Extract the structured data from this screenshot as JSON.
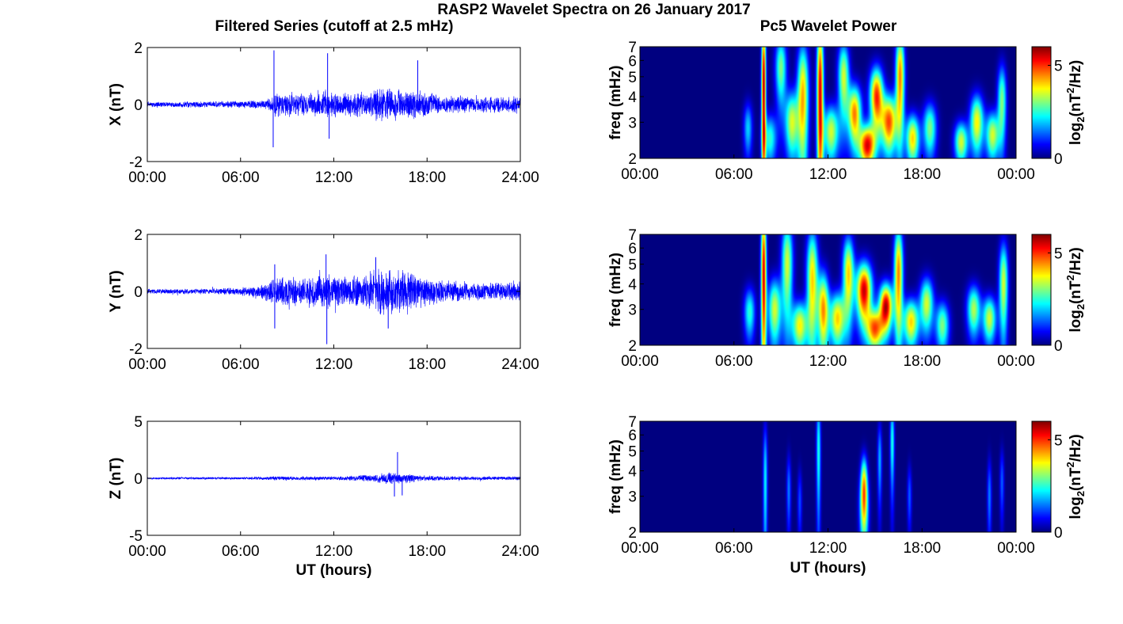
{
  "figure": {
    "title": "RASP2 Wavelet Spectra on 26 January 2017",
    "left_title": "Filtered Series (cutoff at 2.5 mHz)",
    "right_title": "Pc5 Wavelet Power",
    "series_color": "#0000ff"
  },
  "chart_data": [
    {
      "type": "line",
      "component": "X",
      "ylabel": "X (nT)",
      "xlabel": "",
      "xlim_hours": [
        0,
        24
      ],
      "ylim": [
        -2,
        2
      ],
      "yticks": [
        "-2",
        "0",
        "2"
      ],
      "xticks": [
        "00:00",
        "06:00",
        "12:00",
        "18:00",
        "24:00"
      ],
      "envelope": {
        "t": [
          0,
          3,
          6,
          7.8,
          8.2,
          10,
          11.5,
          12,
          14,
          15,
          17,
          17.5,
          19,
          21,
          24
        ],
        "amp": [
          0.08,
          0.09,
          0.12,
          0.15,
          0.45,
          0.35,
          0.5,
          0.4,
          0.4,
          0.55,
          0.5,
          0.45,
          0.3,
          0.25,
          0.28
        ]
      },
      "spikes": [
        {
          "t": 8.15,
          "y": 1.9
        },
        {
          "t": 8.1,
          "y": -1.5
        },
        {
          "t": 11.6,
          "y": 1.8
        },
        {
          "t": 11.7,
          "y": -1.2
        },
        {
          "t": 17.4,
          "y": 1.55
        }
      ]
    },
    {
      "type": "line",
      "component": "Y",
      "ylabel": "Y (nT)",
      "xlabel": "",
      "xlim_hours": [
        0,
        24
      ],
      "ylim": [
        -2,
        2
      ],
      "yticks": [
        "-2",
        "0",
        "2"
      ],
      "xticks": [
        "00:00",
        "06:00",
        "12:00",
        "18:00",
        "24:00"
      ],
      "envelope": {
        "t": [
          0,
          3,
          6,
          7.5,
          8.2,
          10,
          11.5,
          12,
          14,
          15,
          16,
          17,
          19,
          21,
          24
        ],
        "amp": [
          0.08,
          0.08,
          0.12,
          0.25,
          0.5,
          0.45,
          0.6,
          0.45,
          0.5,
          0.8,
          0.7,
          0.6,
          0.35,
          0.3,
          0.3
        ]
      },
      "spikes": [
        {
          "t": 8.2,
          "y": 0.95
        },
        {
          "t": 8.2,
          "y": -1.3
        },
        {
          "t": 11.5,
          "y": 1.3
        },
        {
          "t": 11.55,
          "y": -1.85
        },
        {
          "t": 14.7,
          "y": 1.2
        },
        {
          "t": 15.5,
          "y": -1.3
        }
      ]
    },
    {
      "type": "line",
      "component": "Z",
      "ylabel": "Z (nT)",
      "xlabel": "UT (hours)",
      "xlim_hours": [
        0,
        24
      ],
      "ylim": [
        -5,
        5
      ],
      "yticks": [
        "-5",
        "0",
        "5"
      ],
      "xticks": [
        "00:00",
        "06:00",
        "12:00",
        "18:00",
        "24:00"
      ],
      "envelope": {
        "t": [
          0,
          6,
          8,
          12,
          14.5,
          15.5,
          16.5,
          18,
          20,
          24
        ],
        "amp": [
          0.08,
          0.1,
          0.15,
          0.15,
          0.3,
          0.5,
          0.4,
          0.2,
          0.15,
          0.15
        ]
      },
      "spikes": [
        {
          "t": 16.1,
          "y": 2.3
        },
        {
          "t": 15.9,
          "y": -1.6
        },
        {
          "t": 16.4,
          "y": -1.5
        }
      ]
    },
    {
      "type": "heatmap",
      "component": "X",
      "ylabel": "freq (mHz)",
      "xlabel": "",
      "xlim_hours": [
        0,
        24
      ],
      "yticks": [
        "2",
        "3",
        "4",
        "5",
        "6",
        "7"
      ],
      "xticks": [
        "00:00",
        "06:00",
        "12:00",
        "18:00",
        "00:00"
      ],
      "colorbar_label": "log2(nT2/Hz)",
      "colorbar_ticks": [
        "0",
        "5"
      ],
      "colorbar_max": 6,
      "colormap": "jet",
      "blobs": [
        {
          "t": 7.9,
          "f": 4.5,
          "amp": 5.8,
          "tw": 0.1,
          "fw": 3
        },
        {
          "t": 8.3,
          "f": 2.5,
          "amp": 2.5,
          "tw": 0.3,
          "fw": 0.5
        },
        {
          "t": 9.0,
          "f": 5.5,
          "amp": 3.0,
          "tw": 0.25,
          "fw": 1.5
        },
        {
          "t": 9.7,
          "f": 3.0,
          "amp": 3.5,
          "tw": 0.3,
          "fw": 0.8
        },
        {
          "t": 10.4,
          "f": 4.0,
          "amp": 4.2,
          "tw": 0.25,
          "fw": 2.0
        },
        {
          "t": 11.5,
          "f": 4.2,
          "amp": 5.5,
          "tw": 0.15,
          "fw": 3.0
        },
        {
          "t": 12.2,
          "f": 2.7,
          "amp": 3.5,
          "tw": 0.35,
          "fw": 0.6
        },
        {
          "t": 13.0,
          "f": 5.0,
          "amp": 3.5,
          "tw": 0.25,
          "fw": 1.5
        },
        {
          "t": 13.7,
          "f": 3.3,
          "amp": 4.5,
          "tw": 0.3,
          "fw": 0.8
        },
        {
          "t": 14.5,
          "f": 2.3,
          "amp": 5.3,
          "tw": 0.35,
          "fw": 0.4
        },
        {
          "t": 15.1,
          "f": 4.0,
          "amp": 5.0,
          "tw": 0.3,
          "fw": 1.0
        },
        {
          "t": 15.9,
          "f": 3.0,
          "amp": 4.8,
          "tw": 0.35,
          "fw": 0.7
        },
        {
          "t": 16.6,
          "f": 5.0,
          "amp": 4.5,
          "tw": 0.2,
          "fw": 2.0
        },
        {
          "t": 17.4,
          "f": 2.5,
          "amp": 4.0,
          "tw": 0.3,
          "fw": 0.5
        },
        {
          "t": 18.5,
          "f": 2.8,
          "amp": 3.0,
          "tw": 0.3,
          "fw": 0.6
        },
        {
          "t": 20.5,
          "f": 2.4,
          "amp": 3.5,
          "tw": 0.3,
          "fw": 0.4
        },
        {
          "t": 21.5,
          "f": 3.0,
          "amp": 3.8,
          "tw": 0.3,
          "fw": 0.7
        },
        {
          "t": 22.5,
          "f": 2.6,
          "amp": 3.5,
          "tw": 0.3,
          "fw": 0.5
        },
        {
          "t": 23.1,
          "f": 3.8,
          "amp": 3.0,
          "tw": 0.2,
          "fw": 1.2
        },
        {
          "t": 6.9,
          "f": 2.8,
          "amp": 2.0,
          "tw": 0.2,
          "fw": 0.6
        }
      ]
    },
    {
      "type": "heatmap",
      "component": "Y",
      "ylabel": "freq (mHz)",
      "xlabel": "",
      "xlim_hours": [
        0,
        24
      ],
      "yticks": [
        "2",
        "3",
        "4",
        "5",
        "6",
        "7"
      ],
      "xticks": [
        "00:00",
        "06:00",
        "12:00",
        "18:00",
        "00:00"
      ],
      "colorbar_label": "log2(nT2/Hz)",
      "colorbar_ticks": [
        "0",
        "5"
      ],
      "colorbar_max": 6,
      "colormap": "jet",
      "blobs": [
        {
          "t": 7.9,
          "f": 4.5,
          "amp": 5.5,
          "tw": 0.12,
          "fw": 3
        },
        {
          "t": 8.6,
          "f": 3.0,
          "amp": 3.5,
          "tw": 0.3,
          "fw": 0.8
        },
        {
          "t": 9.4,
          "f": 5.0,
          "amp": 3.5,
          "tw": 0.25,
          "fw": 2.0
        },
        {
          "t": 10.2,
          "f": 2.5,
          "amp": 3.8,
          "tw": 0.35,
          "fw": 0.5
        },
        {
          "t": 11.0,
          "f": 4.2,
          "amp": 4.0,
          "tw": 0.25,
          "fw": 2.0
        },
        {
          "t": 11.7,
          "f": 3.0,
          "amp": 4.3,
          "tw": 0.25,
          "fw": 1.0
        },
        {
          "t": 12.6,
          "f": 2.7,
          "amp": 4.0,
          "tw": 0.35,
          "fw": 0.6
        },
        {
          "t": 13.3,
          "f": 4.5,
          "amp": 4.0,
          "tw": 0.25,
          "fw": 1.5
        },
        {
          "t": 14.3,
          "f": 3.7,
          "amp": 5.6,
          "tw": 0.35,
          "fw": 0.9
        },
        {
          "t": 15.0,
          "f": 2.4,
          "amp": 4.5,
          "tw": 0.35,
          "fw": 0.4
        },
        {
          "t": 15.7,
          "f": 3.1,
          "amp": 5.7,
          "tw": 0.3,
          "fw": 0.6
        },
        {
          "t": 16.5,
          "f": 4.5,
          "amp": 4.5,
          "tw": 0.2,
          "fw": 2.0
        },
        {
          "t": 17.3,
          "f": 2.6,
          "amp": 4.0,
          "tw": 0.35,
          "fw": 0.5
        },
        {
          "t": 18.3,
          "f": 3.2,
          "amp": 3.5,
          "tw": 0.3,
          "fw": 0.7
        },
        {
          "t": 19.3,
          "f": 2.5,
          "amp": 3.0,
          "tw": 0.3,
          "fw": 0.5
        },
        {
          "t": 21.3,
          "f": 3.0,
          "amp": 3.3,
          "tw": 0.3,
          "fw": 0.6
        },
        {
          "t": 22.3,
          "f": 2.7,
          "amp": 3.5,
          "tw": 0.3,
          "fw": 0.5
        },
        {
          "t": 23.2,
          "f": 4.0,
          "amp": 3.5,
          "tw": 0.2,
          "fw": 1.5
        },
        {
          "t": 7.0,
          "f": 2.9,
          "amp": 2.5,
          "tw": 0.25,
          "fw": 0.6
        }
      ]
    },
    {
      "type": "heatmap",
      "component": "Z",
      "ylabel": "freq (mHz)",
      "xlabel": "UT (hours)",
      "xlim_hours": [
        0,
        24
      ],
      "yticks": [
        "2",
        "3",
        "4",
        "5",
        "6",
        "7"
      ],
      "xticks": [
        "00:00",
        "06:00",
        "12:00",
        "18:00",
        "00:00"
      ],
      "colorbar_label": "log2(nT2/Hz)",
      "colorbar_ticks": [
        "0",
        "5"
      ],
      "colorbar_max": 6,
      "colormap": "jet",
      "blobs": [
        {
          "t": 8.0,
          "f": 3.5,
          "amp": 2.2,
          "tw": 0.1,
          "fw": 2.0
        },
        {
          "t": 11.4,
          "f": 5.0,
          "amp": 2.4,
          "tw": 0.1,
          "fw": 2.5
        },
        {
          "t": 14.3,
          "f": 2.6,
          "amp": 3.2,
          "tw": 0.2,
          "fw": 0.8
        },
        {
          "t": 14.3,
          "f": 3.6,
          "amp": 2.8,
          "tw": 0.15,
          "fw": 0.8
        },
        {
          "t": 16.1,
          "f": 5.5,
          "amp": 2.4,
          "tw": 0.1,
          "fw": 2.0
        },
        {
          "t": 15.3,
          "f": 4.5,
          "amp": 1.8,
          "tw": 0.1,
          "fw": 1.5
        },
        {
          "t": 9.5,
          "f": 3.2,
          "amp": 1.5,
          "tw": 0.1,
          "fw": 1.0
        },
        {
          "t": 17.2,
          "f": 3.0,
          "amp": 1.3,
          "tw": 0.1,
          "fw": 0.8
        },
        {
          "t": 22.3,
          "f": 3.0,
          "amp": 1.5,
          "tw": 0.1,
          "fw": 1.0
        },
        {
          "t": 23.1,
          "f": 3.5,
          "amp": 1.3,
          "tw": 0.1,
          "fw": 1.0
        },
        {
          "t": 10.2,
          "f": 2.8,
          "amp": 1.2,
          "tw": 0.1,
          "fw": 0.8
        }
      ]
    }
  ]
}
